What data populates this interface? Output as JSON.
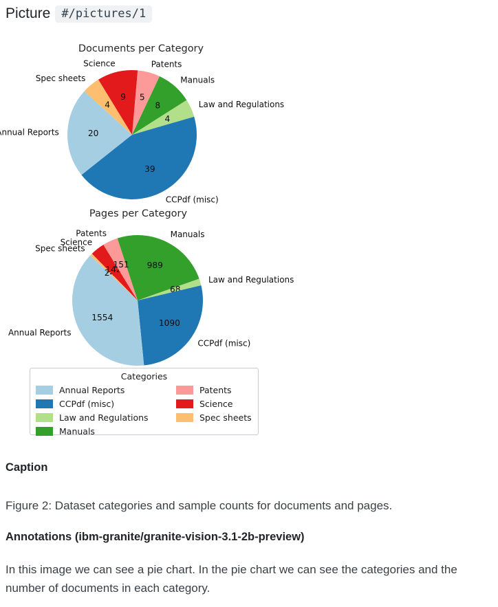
{
  "page": {
    "header_label": "Picture",
    "header_code": "#/pictures/1"
  },
  "chart_data": [
    {
      "type": "pie",
      "title": "Documents per Category",
      "direction": "clockwise-from-top",
      "slices": [
        {
          "label": "Patents",
          "value": 5,
          "color": "#fb9a99"
        },
        {
          "label": "Manuals",
          "value": 8,
          "color": "#33a02c"
        },
        {
          "label": "Law and Regulations",
          "value": 4,
          "color": "#b2df8a"
        },
        {
          "label": "CCPdf (misc)",
          "value": 39,
          "color": "#1f78b4"
        },
        {
          "label": "Annual Reports",
          "value": 20,
          "color": "#a6cee3"
        },
        {
          "label": "Spec sheets",
          "value": 4,
          "color": "#fdbf6f"
        },
        {
          "label": "Science",
          "value": 9,
          "color": "#e31a1c"
        }
      ]
    },
    {
      "type": "pie",
      "title": "Pages per Category",
      "direction": "clockwise-from-top",
      "slices": [
        {
          "label": "Manuals",
          "value": 989,
          "color": "#33a02c"
        },
        {
          "label": "Law and Regulations",
          "value": 68,
          "color": "#b2df8a"
        },
        {
          "label": "CCPdf (misc)",
          "value": 1090,
          "color": "#1f78b4"
        },
        {
          "label": "Annual Reports",
          "value": 1554,
          "color": "#a6cee3"
        },
        {
          "label": "Spec sheets",
          "value": 24,
          "color": "#fdbf6f"
        },
        {
          "label": "Science",
          "value": 142,
          "color": "#e31a1c"
        },
        {
          "label": "Patents",
          "value": 151,
          "color": "#fb9a99"
        }
      ]
    }
  ],
  "legend": {
    "title": "Categories",
    "items": [
      {
        "label": "Annual Reports",
        "color": "#a6cee3"
      },
      {
        "label": "CCPdf (misc)",
        "color": "#1f78b4"
      },
      {
        "label": "Law and Regulations",
        "color": "#b2df8a"
      },
      {
        "label": "Manuals",
        "color": "#33a02c"
      },
      {
        "label": "Patents",
        "color": "#fb9a99"
      },
      {
        "label": "Science",
        "color": "#e31a1c"
      },
      {
        "label": "Spec sheets",
        "color": "#fdbf6f"
      }
    ]
  },
  "caption": {
    "heading": "Caption",
    "text": "Figure 2: Dataset categories and sample counts for documents and pages."
  },
  "annotations": {
    "heading": "Annotations (ibm-granite/granite-vision-3.1-2b-preview)",
    "text": "In this image we can see a pie chart. In the pie chart we can see the categories and the number of documents in each category."
  }
}
